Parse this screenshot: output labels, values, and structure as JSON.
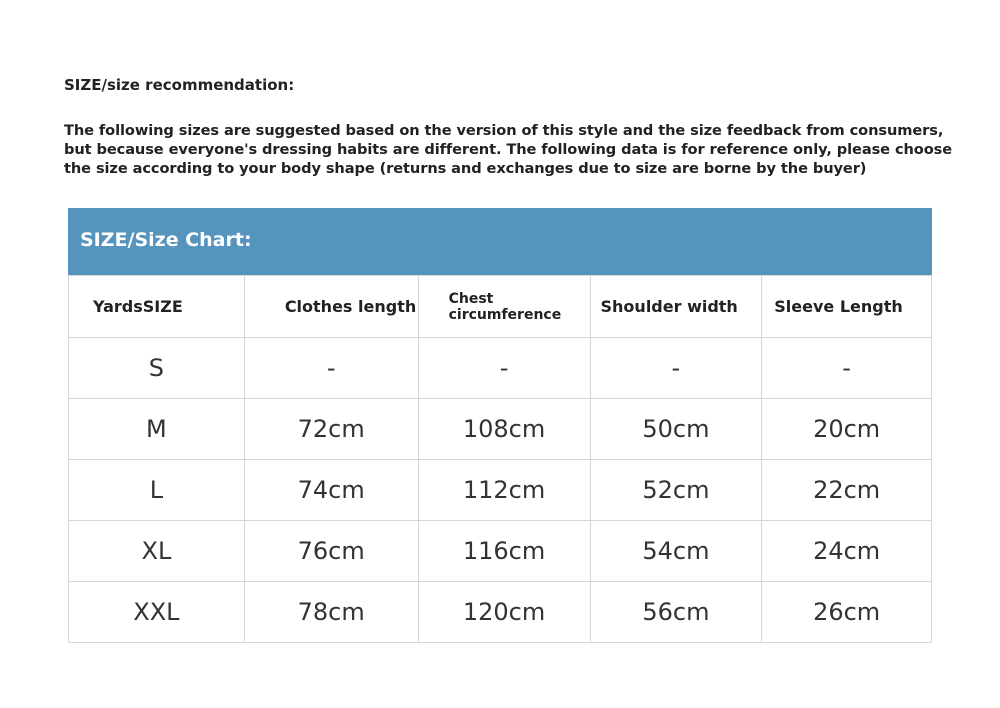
{
  "title": "SIZE/size recommendation:",
  "intro": "The following sizes are suggested based on the version of this style and the size feedback from consumers, but because everyone's dressing habits are different. The following data is for reference only, please choose the size according to your body shape (returns and exchanges due to size are borne by the buyer)",
  "chart_title": "SIZE/Size Chart:",
  "header_color": "#5594bc",
  "columns": [
    "YardsSIZE",
    "Clothes length",
    "Chest circumference",
    "Shoulder width",
    "Sleeve Length"
  ],
  "rows": [
    [
      "S",
      "-",
      "-",
      "-",
      "-"
    ],
    [
      "M",
      "72cm",
      "108cm",
      "50cm",
      "20cm"
    ],
    [
      "L",
      "74cm",
      "112cm",
      "52cm",
      "22cm"
    ],
    [
      "XL",
      "76cm",
      "116cm",
      "54cm",
      "24cm"
    ],
    [
      "XXL",
      "78cm",
      "120cm",
      "56cm",
      "26cm"
    ]
  ]
}
